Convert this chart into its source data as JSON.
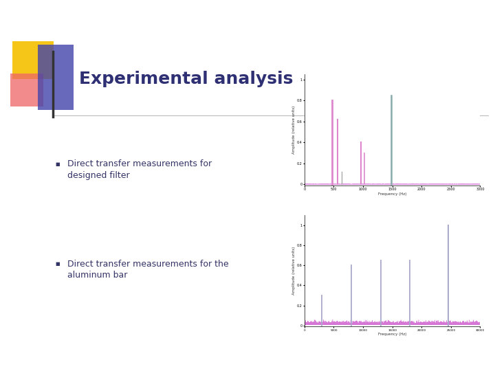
{
  "title": "Experimental analysis",
  "title_color": "#2E3073",
  "title_fontsize": 18,
  "title_fontstyle": "bold",
  "background_color": "#ffffff",
  "bullet1_line1": "Direct transfer measurements for",
  "bullet1_line2": "designed filter",
  "bullet2_line1": "Direct transfer measurements for the",
  "bullet2_line2": "aluminum bar",
  "bullet_color": "#333366",
  "bullet_fontsize": 9,
  "plot1_ylabel": "Amplitude (relative units)",
  "plot1_xlabel": "Frequency (Hz)",
  "plot2_ylabel": "Amplitude (relative units)",
  "plot2_xlabel": "Frequency (Hz)",
  "noise_color": "#CC55CC",
  "peak1_color_pink": "#DD88CC",
  "peak1_color_teal": "#88AAAA",
  "peak2_color": "#AAAACC",
  "decor_yellow": "#F5C518",
  "decor_red": "#EE6666",
  "decor_blue": "#4444AA",
  "line_color": "#333333",
  "sep_color": "#BBBBBB"
}
